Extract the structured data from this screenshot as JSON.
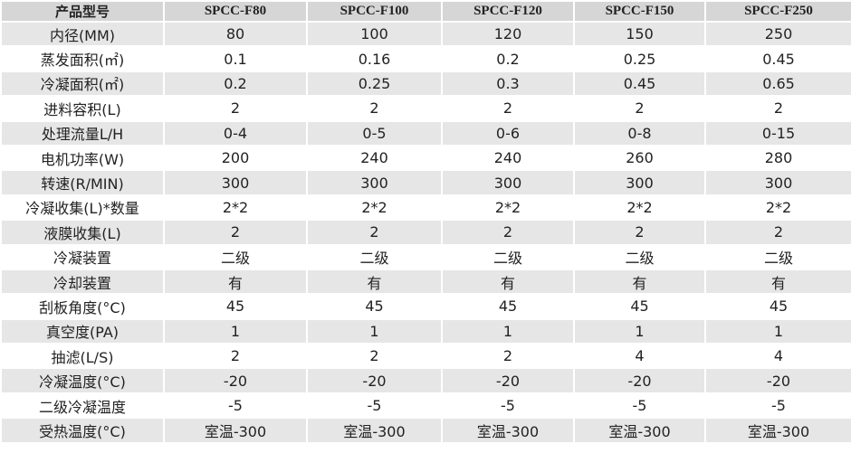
{
  "table": {
    "header": [
      "产品型号",
      "SPCC-F80",
      "SPCC-F100",
      "SPCC-F120",
      "SPCC-F150",
      "SPCC-F250"
    ],
    "rows": [
      [
        "内径(MM)",
        "80",
        "100",
        "120",
        "150",
        "250"
      ],
      [
        "蒸发面积(㎡)",
        "0.1",
        "0.16",
        "0.2",
        "0.25",
        "0.45"
      ],
      [
        "冷凝面积(㎡)",
        "0.2",
        "0.25",
        "0.3",
        "0.45",
        "0.65"
      ],
      [
        "进料容积(L)",
        "2",
        "2",
        "2",
        "2",
        "2"
      ],
      [
        "处理流量L/H",
        "0-4",
        "0-5",
        "0-6",
        "0-8",
        "0-15"
      ],
      [
        "电机功率(W)",
        "200",
        "240",
        "240",
        "260",
        "280"
      ],
      [
        "转速(R/MIN)",
        "300",
        "300",
        "300",
        "300",
        "300"
      ],
      [
        "冷凝收集(L)*数量",
        "2*2",
        "2*2",
        "2*2",
        "2*2",
        "2*2"
      ],
      [
        "液膜收集(L)",
        "2",
        "2",
        "2",
        "2",
        "2"
      ],
      [
        "冷凝装置",
        "二级",
        "二级",
        "二级",
        "二级",
        "二级"
      ],
      [
        "冷却装置",
        "有",
        "有",
        "有",
        "有",
        "有"
      ],
      [
        "刮板角度(°C)",
        "45",
        "45",
        "45",
        "45",
        "45"
      ],
      [
        "真空度(PA)",
        "1",
        "1",
        "1",
        "1",
        "1"
      ],
      [
        "抽滤(L/S)",
        "2",
        "2",
        "2",
        "4",
        "4"
      ],
      [
        "冷凝温度(°C)",
        "-20",
        "-20",
        "-20",
        "-20",
        "-20"
      ],
      [
        "二级冷凝温度",
        "-5",
        "-5",
        "-5",
        "-5",
        "-5"
      ],
      [
        "受热温度(°C)",
        "室温-300",
        "室温-300",
        "室温-300",
        "室温-300",
        "室温-300"
      ]
    ]
  }
}
